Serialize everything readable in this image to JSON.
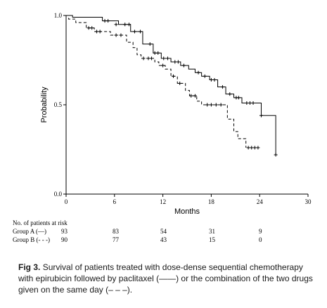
{
  "chart_data": {
    "type": "line",
    "subtype": "kaplan-meier step",
    "title": "",
    "xlabel": "Months",
    "ylabel": "Probability",
    "xlim": [
      0,
      30
    ],
    "ylim": [
      0,
      1
    ],
    "xticks": [
      "0",
      "6",
      "12",
      "18",
      "24",
      "30"
    ],
    "yticks": [
      "0.0",
      "0.5",
      "1.0"
    ],
    "grid": false,
    "legend": "none",
    "series": [
      {
        "style": "solid",
        "x": [
          0,
          0.8,
          4.5,
          6.5,
          8.0,
          9.5,
          10.8,
          11.8,
          13.0,
          14.2,
          15.2,
          16.0,
          16.8,
          17.8,
          18.8,
          19.8,
          20.8,
          21.8,
          24.2,
          26.0
        ],
        "y": [
          1.0,
          0.99,
          0.97,
          0.95,
          0.91,
          0.84,
          0.79,
          0.76,
          0.74,
          0.72,
          0.7,
          0.68,
          0.66,
          0.64,
          0.6,
          0.56,
          0.54,
          0.51,
          0.44,
          0.22
        ],
        "censored_x": [
          4.8,
          5.2,
          6.2,
          7.3,
          7.8,
          8.5,
          9.2,
          10.4,
          11.0,
          11.4,
          12.1,
          12.6,
          13.5,
          13.9,
          14.6,
          16.4,
          17.2,
          18.0,
          18.4,
          19.4,
          20.3,
          21.1,
          21.4,
          22.4,
          22.8,
          23.2,
          24.2,
          26.0
        ],
        "censored_y": [
          0.97,
          0.97,
          0.95,
          0.95,
          0.95,
          0.91,
          0.91,
          0.84,
          0.79,
          0.79,
          0.76,
          0.76,
          0.74,
          0.74,
          0.72,
          0.68,
          0.66,
          0.64,
          0.64,
          0.6,
          0.56,
          0.54,
          0.54,
          0.51,
          0.51,
          0.51,
          0.44,
          0.22
        ]
      },
      {
        "style": "dashed",
        "x": [
          0,
          0.3,
          1.2,
          2.5,
          3.5,
          5.5,
          7.5,
          8.3,
          8.8,
          9.3,
          11.0,
          11.5,
          12.3,
          13.0,
          13.8,
          14.8,
          15.3,
          16.2,
          16.8,
          20.0,
          20.8,
          21.3,
          22.3
        ],
        "y": [
          1.0,
          0.98,
          0.96,
          0.93,
          0.91,
          0.89,
          0.85,
          0.82,
          0.78,
          0.76,
          0.74,
          0.72,
          0.7,
          0.66,
          0.62,
          0.58,
          0.55,
          0.52,
          0.5,
          0.42,
          0.35,
          0.31,
          0.26
        ],
        "censored_x": [
          2.8,
          3.2,
          3.8,
          4.2,
          6.2,
          6.8,
          9.6,
          10.2,
          10.6,
          12.0,
          13.3,
          14.1,
          15.5,
          16.0,
          17.5,
          18.0,
          18.6,
          19.2,
          22.6,
          23.0,
          23.4,
          23.8
        ],
        "censored_y": [
          0.93,
          0.93,
          0.91,
          0.91,
          0.89,
          0.89,
          0.76,
          0.76,
          0.76,
          0.72,
          0.66,
          0.62,
          0.55,
          0.55,
          0.5,
          0.5,
          0.5,
          0.5,
          0.26,
          0.26,
          0.26,
          0.26
        ]
      }
    ]
  },
  "risk_table": {
    "header": "No. of patients at risk",
    "rows": [
      {
        "label": "Group A (—)",
        "values": [
          "93",
          "83",
          "54",
          "31",
          "9"
        ]
      },
      {
        "label": "Group B (- - -)",
        "values": [
          "90",
          "77",
          "43",
          "15",
          "0"
        ]
      }
    ]
  },
  "caption": {
    "label": "Fig 3.",
    "text": "Survival of patients treated with dose-dense sequential chemotherapy with epirubicin followed by paclitaxel (——) or the combination of the two drugs given on the same day (– – –)."
  }
}
